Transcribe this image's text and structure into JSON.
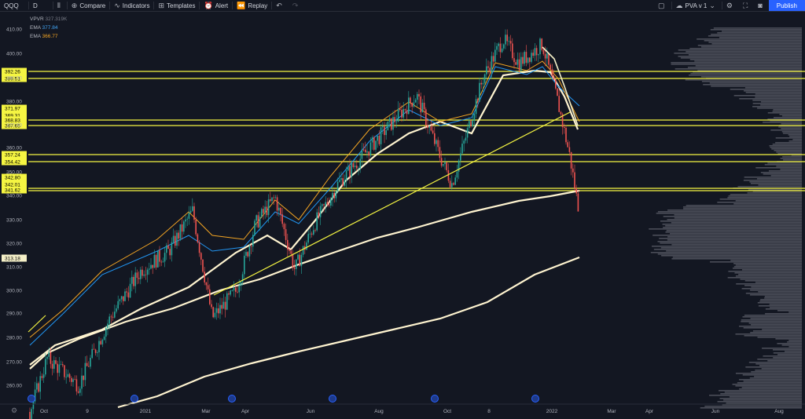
{
  "toolbar": {
    "symbol": "QQQ",
    "interval": "D",
    "compare_label": "Compare",
    "indicators_label": "Indicators",
    "templates_label": "Templates",
    "alert_label": "Alert",
    "replay_label": "Replay",
    "layout_label": "PVA v 1",
    "publish_label": "Publish"
  },
  "legend": {
    "vpvr_name": "VPVR",
    "vpvr_value": "327.319K",
    "ema1_name": "EMA",
    "ema1_value": "377.84",
    "ema2_name": "EMA",
    "ema2_value": "366.77"
  },
  "price_ticks": [
    "410.00",
    "400.00",
    "390.00",
    "380.00",
    "370.00",
    "360.00",
    "350.00",
    "340.00",
    "330.00",
    "320.00",
    "310.00",
    "300.00",
    "290.00",
    "280.00",
    "270.00",
    "260.00"
  ],
  "level_labels": [
    "392.26",
    "389.51",
    "371.97",
    "369.31",
    "368.83",
    "367.65",
    "357.24",
    "354.42",
    "342.80",
    "342.01",
    "341.62",
    "313.18"
  ],
  "date_ticks": [
    "Oct",
    "9",
    "2021",
    "Mar",
    "Apr",
    "Jun",
    "Aug",
    "Oct",
    "8",
    "2022",
    "Mar",
    "Apr",
    "Jun",
    "Aug"
  ],
  "colors": {
    "background": "#131722",
    "up_candle": "#26a69a",
    "down_candle": "#ef5350",
    "level_line": "#f5f542",
    "ma_white": "#fff4d0",
    "ema_blue": "#2196f3",
    "ema_orange": "#f5a623",
    "volume_profile": "#5d606b",
    "accent": "#2962ff"
  }
}
